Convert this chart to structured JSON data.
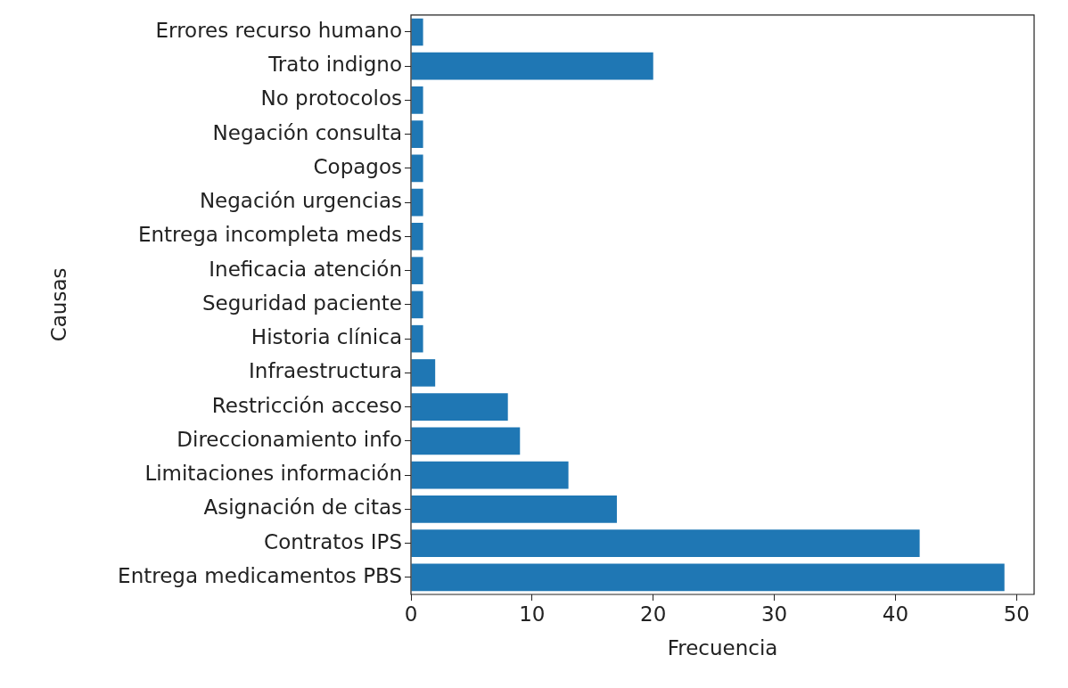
{
  "chart_data": {
    "type": "bar",
    "orientation": "horizontal",
    "xlabel": "Frecuencia",
    "ylabel": "Causas",
    "categories": [
      "Errores recurso humano",
      "Trato indigno",
      "No protocolos",
      "Negación consulta",
      "Copagos",
      "Negación urgencias",
      "Entrega incompleta meds",
      "Ineficacia atención",
      "Seguridad paciente",
      "Historia clínica",
      "Infraestructura",
      "Restricción acceso",
      "Direccionamiento info",
      "Limitaciones información",
      "Asignación de citas",
      "Contratos IPS",
      "Entrega medicamentos PBS"
    ],
    "values": [
      1,
      20,
      1,
      1,
      1,
      1,
      1,
      1,
      1,
      1,
      2,
      8,
      9,
      13,
      17,
      42,
      49
    ],
    "color": "#1f77b4",
    "xlim": [
      0,
      51.45
    ],
    "xticks": [
      0,
      10,
      20,
      30,
      40,
      50
    ],
    "grid": false,
    "legend": false
  }
}
